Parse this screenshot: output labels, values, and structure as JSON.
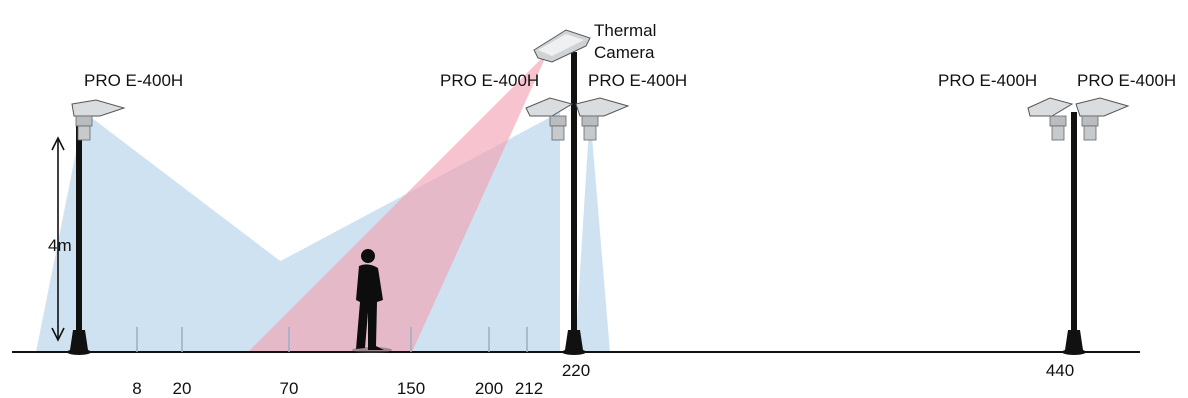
{
  "diagram": {
    "colors": {
      "coverage_blue": "#a9cbe6",
      "thermal_red": "#f2a3b3",
      "pole": "#111111",
      "ground": "#111111"
    },
    "height_label": "4m",
    "thermal_camera": {
      "label_line1": "Thermal",
      "label_line2": "Camera"
    },
    "cameras": [
      {
        "label": "PRO E-400H"
      },
      {
        "label": "PRO E-400H"
      },
      {
        "label": "PRO E-400H"
      },
      {
        "label": "PRO E-400H"
      },
      {
        "label": "PRO E-400H"
      }
    ],
    "distance_marks": [
      "8",
      "20",
      "70",
      "150",
      "200",
      "212",
      "220",
      "440"
    ]
  }
}
